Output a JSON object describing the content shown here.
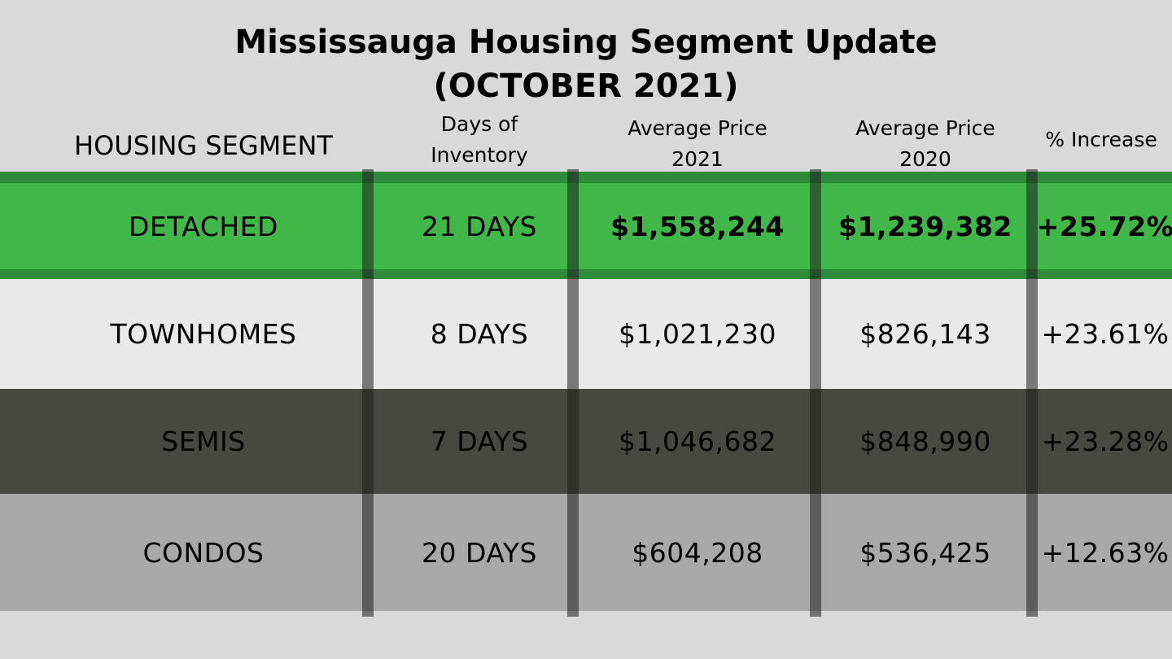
{
  "title_line1": "Mississauga Housing Segment Update",
  "title_line2": "(OCTOBER 2021)",
  "colors": {
    "background": "#d9d9d9",
    "detached_row": "#41b649",
    "townhomes_row": "#e9e9e9",
    "semis_row": "#474841",
    "condos_row": "#a9a9a9"
  },
  "chart_data": {
    "type": "table",
    "columns": [
      "HOUSING SEGMENT",
      "Days of\nInventory",
      "Average Price\n2021",
      "Average Price\n2020",
      "% Increase"
    ],
    "rows": [
      [
        "DETACHED",
        "21 DAYS",
        "$1,558,244",
        "$1,239,382",
        "+25.72%"
      ],
      [
        "TOWNHOMES",
        "8 DAYS",
        "$1,021,230",
        "$826,143",
        "+23.61%"
      ],
      [
        "SEMIS",
        "7 DAYS",
        "$1,046,682",
        "$848,990",
        "+23.28%"
      ],
      [
        "CONDOS",
        "20 DAYS",
        "$604,208",
        "$536,425",
        "+12.63%"
      ]
    ]
  }
}
